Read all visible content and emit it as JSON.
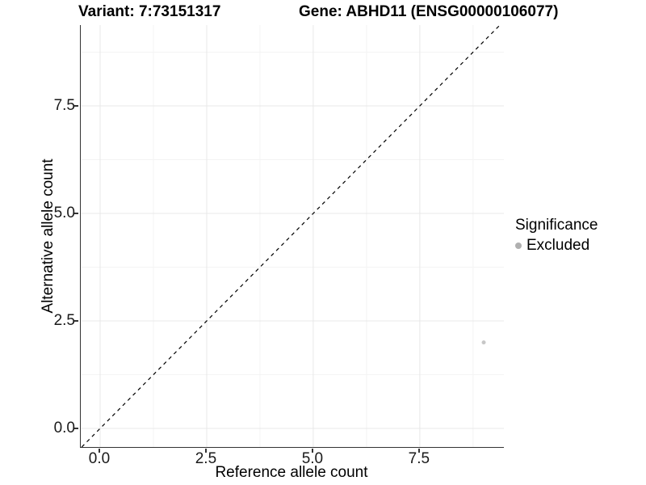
{
  "header": {
    "variant_title": "Variant: 7:73151317",
    "gene_title": "Gene: ABHD11 (ENSG00000106077)"
  },
  "legend": {
    "title": "Significance",
    "items": [
      {
        "label": "Excluded",
        "color": "#b0b0b0"
      }
    ]
  },
  "colors": {
    "axis_line": "#333333",
    "grid_major": "#e8e8e8",
    "grid_minor": "#f4f4f4",
    "tick_text": "#1a1a1a",
    "title_text": "#000000",
    "point": "#c7c7c7",
    "identity_line": "#000000",
    "background": "#ffffff"
  },
  "chart_data": {
    "type": "scatter",
    "title": "Variant: 7:73151317   Gene: ABHD11 (ENSG00000106077)",
    "xlabel": "Reference allele count",
    "ylabel": "Alternative allele count",
    "xlim": [
      -0.455,
      9.473
    ],
    "ylim": [
      -0.432,
      9.38
    ],
    "x_ticks": {
      "values": [
        0.0,
        2.5,
        5.0,
        7.5
      ],
      "labels": [
        "0.0",
        "2.5",
        "5.0",
        "7.5"
      ]
    },
    "y_ticks": {
      "values": [
        0.0,
        2.5,
        5.0,
        7.5
      ],
      "labels": [
        "0.0",
        "2.5",
        "5.0",
        "7.5"
      ]
    },
    "x_minor_ticks": [
      1.25,
      3.75,
      6.25,
      8.75
    ],
    "y_minor_ticks": [
      1.25,
      3.75,
      6.25,
      8.75
    ],
    "grid": true,
    "legend_position": "right",
    "series": [
      {
        "name": "Excluded",
        "color": "#c7c7c7",
        "point_radius": 2.5,
        "points": [
          {
            "x": 9,
            "y": 2
          }
        ]
      }
    ],
    "reference_line": {
      "kind": "identity",
      "equation": "y = x",
      "style": "dashed",
      "color": "#000000",
      "dash": "4.5 4.5"
    }
  }
}
